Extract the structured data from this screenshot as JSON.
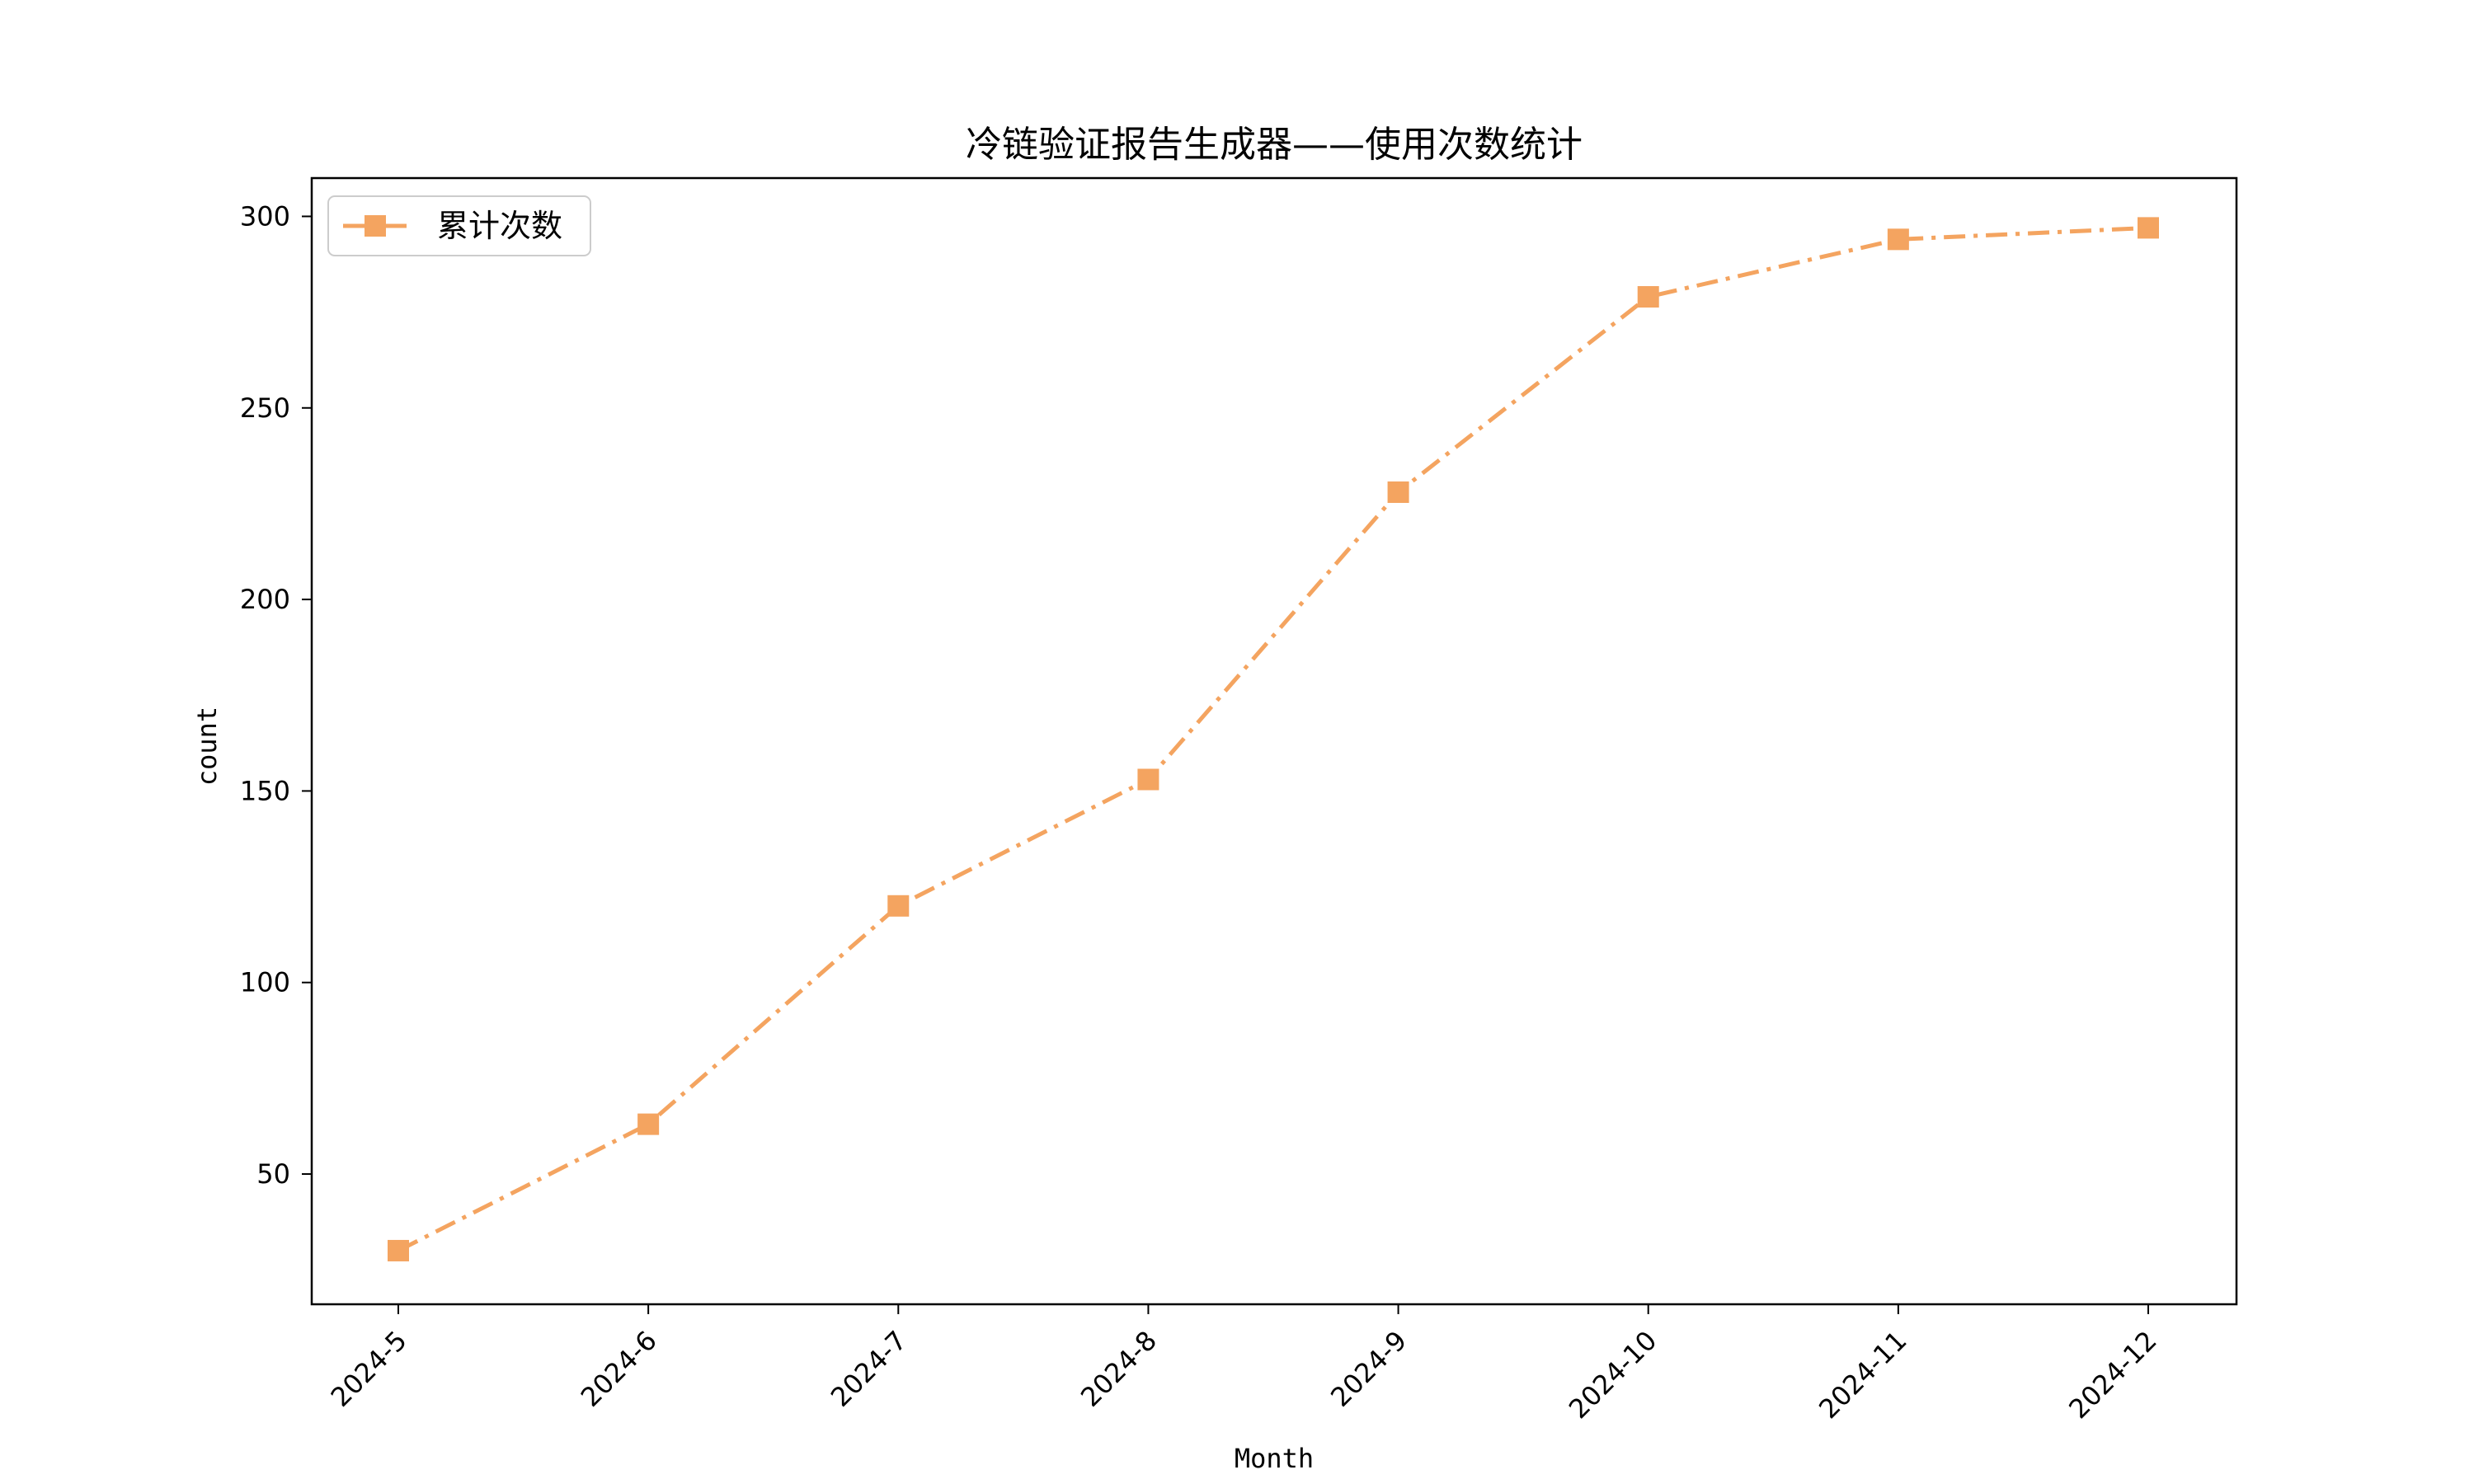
{
  "chart_data": {
    "type": "line",
    "title": "冷链验证报告生成器——使用次数统计",
    "xlabel": "Month",
    "ylabel": "count",
    "categories": [
      "2024-5",
      "2024-6",
      "2024-7",
      "2024-8",
      "2024-9",
      "2024-10",
      "2024-11",
      "2024-12"
    ],
    "yticks": [
      50,
      100,
      150,
      200,
      250,
      300
    ],
    "ylim": [
      16,
      310
    ],
    "grid": false,
    "legend_position": "top-left",
    "series": [
      {
        "name": "累计次数",
        "values": [
          30,
          63,
          120,
          153,
          228,
          279,
          294,
          297
        ],
        "color": "#F4A460",
        "line_style": "dash-dot",
        "marker": "square"
      }
    ]
  }
}
